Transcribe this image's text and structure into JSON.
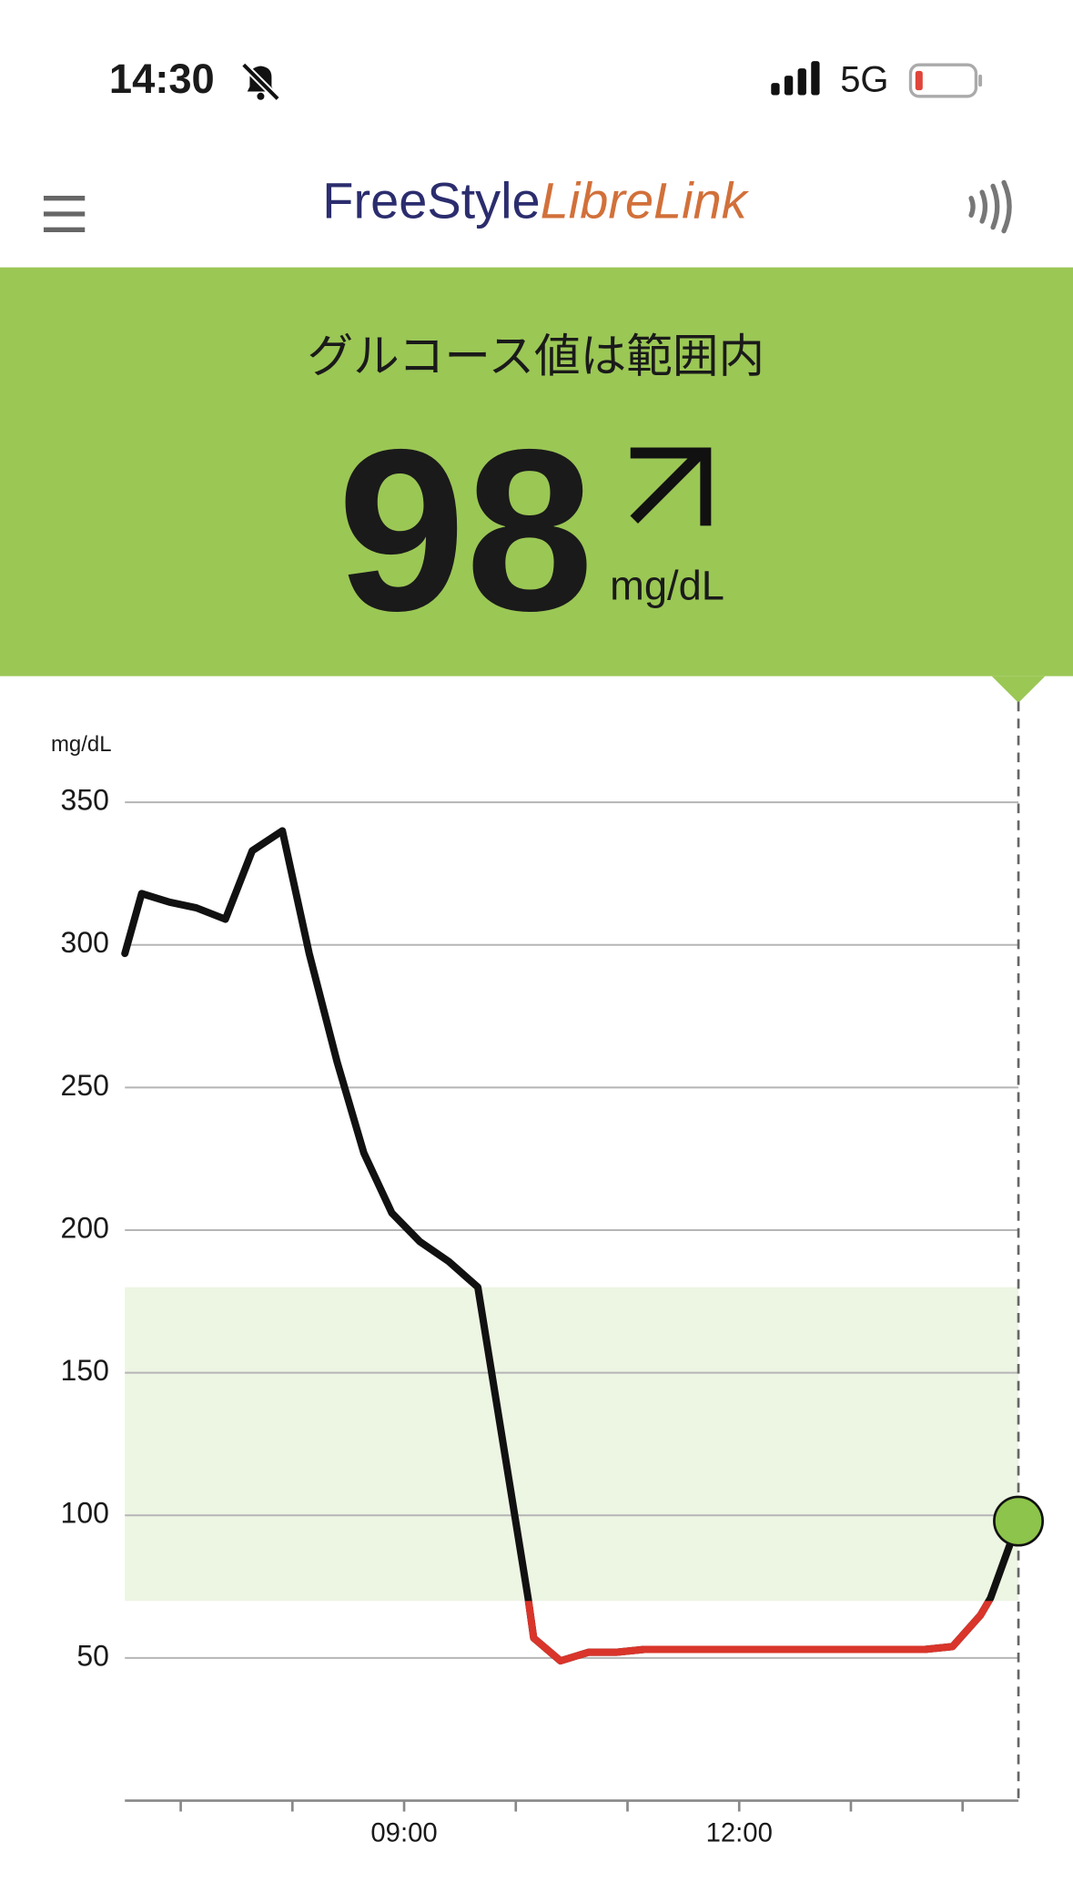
{
  "status_bar": {
    "time": "14:30",
    "network": "5G"
  },
  "header": {
    "logo_part1": "FreeStyle",
    "logo_part2": "LibreLink"
  },
  "banner": {
    "status": "グルコース値は範囲内",
    "value": 98,
    "unit": "mg/dL"
  },
  "chart_data": {
    "type": "line",
    "y_label": "mg/dL",
    "x": [
      6.5,
      6.65,
      6.9,
      7.14,
      7.4,
      7.64,
      7.91,
      8.15,
      8.4,
      8.64,
      8.89,
      9.14,
      9.4,
      9.66,
      10.11,
      10.16,
      10.4,
      10.65,
      10.9,
      11.15,
      11.5,
      12.0,
      12.5,
      13.0,
      13.4,
      13.66,
      13.91,
      14.16,
      14.25,
      14.5
    ],
    "values": [
      297,
      318,
      315,
      313,
      309,
      333,
      340,
      297,
      259,
      227,
      206,
      196,
      189,
      180,
      71,
      57,
      49,
      52,
      52,
      53,
      53,
      53,
      53,
      53,
      53,
      53,
      54,
      65,
      71,
      98
    ],
    "color": "#111111",
    "low_threshold": 70,
    "low_color": "#d9352b",
    "target_range": [
      70,
      180
    ],
    "target_color": "#edf5e3",
    "current_point_color": "#8dc44b",
    "xlim": [
      6.5,
      14.5
    ],
    "ylim": [
      0,
      350
    ],
    "yticks": [
      50,
      100,
      150,
      200,
      250,
      300,
      350
    ],
    "xticks": [
      {
        "value": 9,
        "label": "09:00"
      },
      {
        "value": 12,
        "label": "12:00"
      }
    ],
    "xminorticks": [
      7,
      8,
      10,
      11,
      13,
      14
    ],
    "grid": true
  }
}
